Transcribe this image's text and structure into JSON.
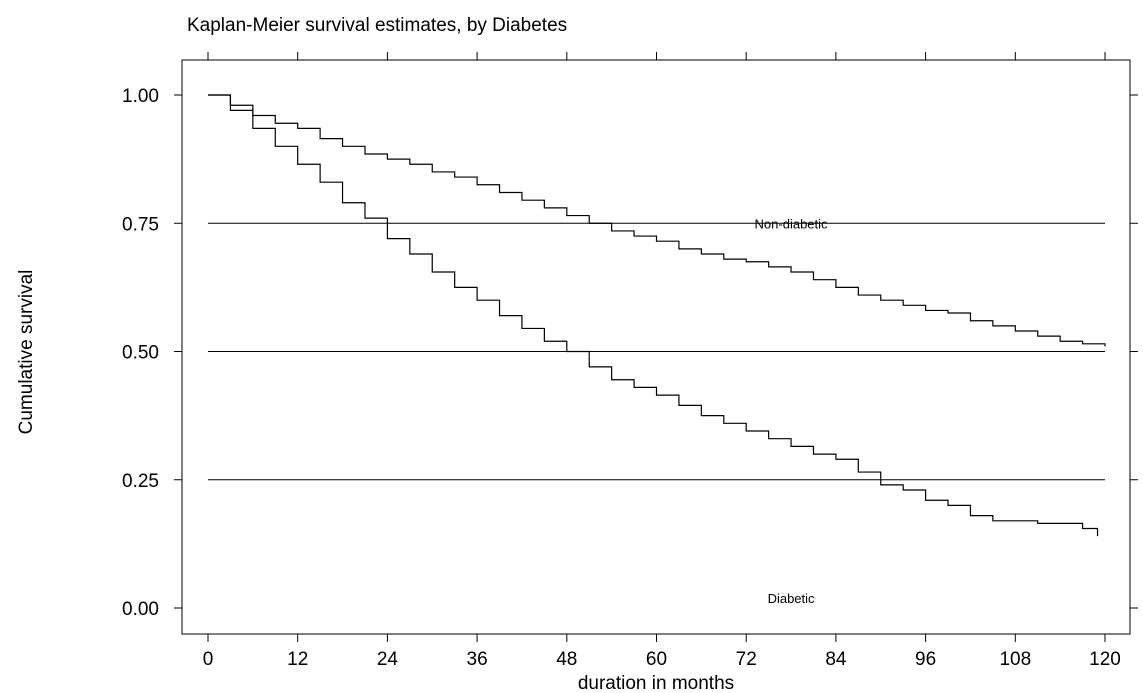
{
  "chart_data": {
    "type": "line",
    "title": "Kaplan-Meier survival estimates, by Diabetes",
    "xlabel": "duration in months",
    "ylabel": "Cumulative survival",
    "xlim": [
      0,
      120
    ],
    "ylim": [
      0,
      1
    ],
    "x_ticks": [
      0,
      12,
      24,
      36,
      48,
      60,
      72,
      84,
      96,
      108,
      120
    ],
    "y_ticks": [
      0.0,
      0.25,
      0.5,
      0.75,
      1.0
    ],
    "x_tick_labels": [
      "0",
      "12",
      "24",
      "36",
      "48",
      "60",
      "72",
      "84",
      "96",
      "108",
      "120"
    ],
    "y_tick_labels": [
      "0.00",
      "0.25",
      "0.50",
      "0.75",
      "1.00"
    ],
    "grid": {
      "horizontal_at": [
        0.25,
        0.5,
        0.75
      ]
    },
    "step": true,
    "series": [
      {
        "name": "Non-diabetic",
        "x": [
          0,
          3,
          6,
          9,
          12,
          15,
          18,
          21,
          24,
          27,
          30,
          33,
          36,
          39,
          42,
          45,
          48,
          51,
          54,
          57,
          60,
          63,
          66,
          69,
          72,
          75,
          78,
          81,
          84,
          87,
          90,
          93,
          96,
          99,
          102,
          105,
          108,
          111,
          114,
          117,
          120
        ],
        "y": [
          1.0,
          0.98,
          0.96,
          0.945,
          0.935,
          0.915,
          0.9,
          0.885,
          0.875,
          0.865,
          0.85,
          0.84,
          0.825,
          0.81,
          0.795,
          0.78,
          0.765,
          0.75,
          0.735,
          0.725,
          0.715,
          0.7,
          0.69,
          0.68,
          0.675,
          0.665,
          0.655,
          0.64,
          0.625,
          0.61,
          0.6,
          0.59,
          0.58,
          0.575,
          0.56,
          0.55,
          0.54,
          0.53,
          0.52,
          0.515,
          0.51
        ]
      },
      {
        "name": "Diabetic",
        "x": [
          0,
          3,
          6,
          9,
          12,
          15,
          18,
          21,
          24,
          27,
          30,
          33,
          36,
          39,
          42,
          45,
          48,
          51,
          54,
          57,
          60,
          63,
          66,
          69,
          72,
          75,
          78,
          81,
          84,
          87,
          90,
          93,
          96,
          99,
          102,
          105,
          108,
          111,
          114,
          117,
          119
        ],
        "y": [
          1.0,
          0.97,
          0.935,
          0.9,
          0.865,
          0.83,
          0.79,
          0.76,
          0.72,
          0.69,
          0.655,
          0.625,
          0.6,
          0.57,
          0.545,
          0.52,
          0.5,
          0.47,
          0.445,
          0.43,
          0.415,
          0.395,
          0.375,
          0.36,
          0.345,
          0.33,
          0.315,
          0.3,
          0.29,
          0.265,
          0.24,
          0.23,
          0.21,
          0.2,
          0.18,
          0.17,
          0.17,
          0.165,
          0.165,
          0.155,
          0.14
        ]
      }
    ],
    "annotations": [
      {
        "text": "Non-diabetic",
        "x": 78,
        "y": 0.74
      },
      {
        "text": "Diabetic",
        "x": 78,
        "y": 0.01
      }
    ]
  }
}
